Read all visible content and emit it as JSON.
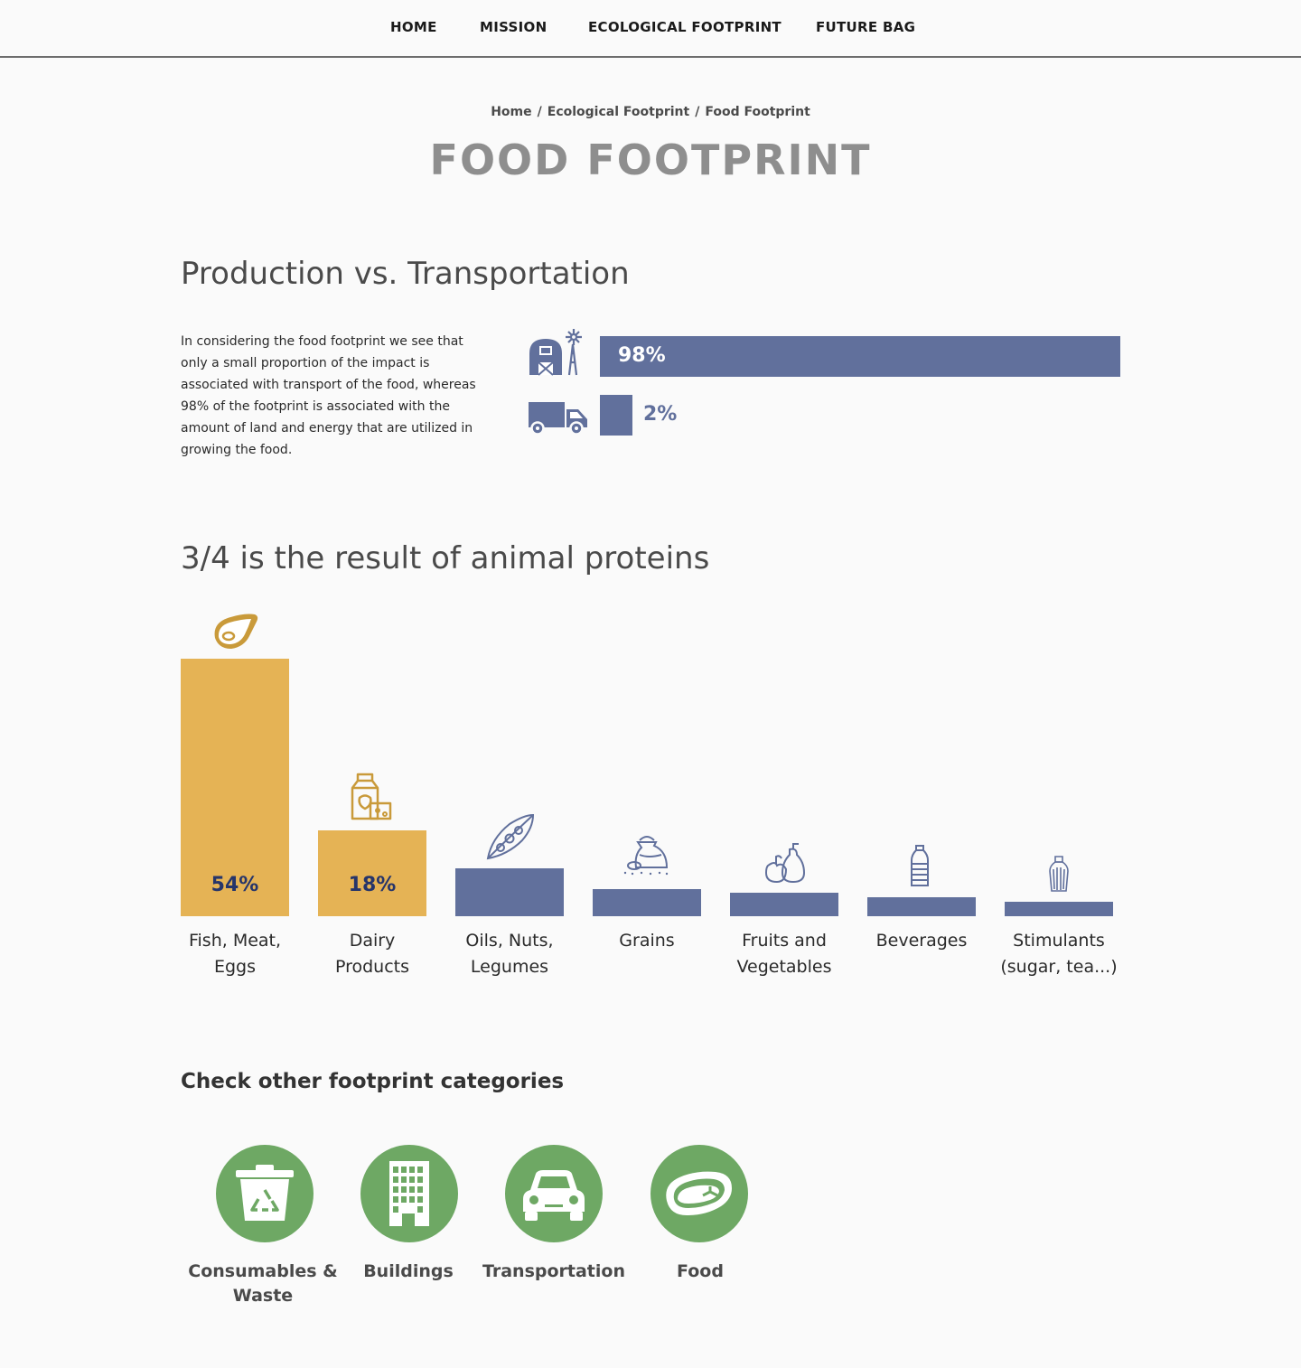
{
  "nav": {
    "items": [
      {
        "label": "HOME"
      },
      {
        "label": "MISSION"
      },
      {
        "label": "ECOLOGICAL FOOTPRINT"
      },
      {
        "label": "FUTURE BAG"
      }
    ]
  },
  "breadcrumb": {
    "items": [
      "Home",
      "Ecological Footprint",
      "Food Footprint"
    ],
    "separator": "/"
  },
  "page_title": "FOOD FOOTPRINT",
  "section1": {
    "heading": "Production vs. Transportation",
    "paragraph": "In considering the food footprint we see that only a small proportion of the impact is associated with transport of the food, whereas 98% of the footprint is associated with the amount of land and energy that are utilized in growing the food.",
    "bars": [
      {
        "icon": "farm-barn-icon",
        "value": 98,
        "label": "98%"
      },
      {
        "icon": "delivery-truck-icon",
        "value": 2,
        "label": "2%"
      }
    ],
    "bar_color": "#61709c"
  },
  "section2": {
    "heading": "3/4 is the result of animal proteins",
    "categories": [
      {
        "label_lines": [
          "Fish, Meat,",
          "Eggs"
        ],
        "value": 54,
        "value_label": "54%",
        "color": "#e5b355",
        "icon": "steak-icon"
      },
      {
        "label_lines": [
          "Dairy",
          "Products"
        ],
        "value": 18,
        "value_label": "18%",
        "color": "#e5b355",
        "icon": "milk-cheese-icon"
      },
      {
        "label_lines": [
          "Oils, Nuts,",
          "Legumes"
        ],
        "value": 10,
        "value_label": "",
        "color": "#61709c",
        "icon": "peapod-icon"
      },
      {
        "label_lines": [
          "Grains",
          ""
        ],
        "value": 5.6,
        "value_label": "",
        "color": "#61709c",
        "icon": "grain-sack-icon"
      },
      {
        "label_lines": [
          "Fruits and",
          "Vegetables"
        ],
        "value": 5,
        "value_label": "",
        "color": "#61709c",
        "icon": "fruits-icon"
      },
      {
        "label_lines": [
          "Beverages",
          ""
        ],
        "value": 4,
        "value_label": "",
        "color": "#61709c",
        "icon": "bottle-icon"
      },
      {
        "label_lines": [
          "Stimulants",
          "(sugar, tea...)"
        ],
        "value": 3,
        "value_label": "",
        "color": "#61709c",
        "icon": "sugar-shaker-icon"
      }
    ]
  },
  "other_categories": {
    "heading": "Check other footprint categories",
    "items": [
      {
        "label_lines": [
          "Consumables &",
          "Waste"
        ],
        "icon": "recycle-bin-icon"
      },
      {
        "label_lines": [
          "Buildings",
          ""
        ],
        "icon": "building-icon"
      },
      {
        "label_lines": [
          "Transportation",
          ""
        ],
        "icon": "car-icon"
      },
      {
        "label_lines": [
          "Food",
          ""
        ],
        "icon": "steak-icon"
      }
    ],
    "circle_color": "#6ea864"
  }
}
